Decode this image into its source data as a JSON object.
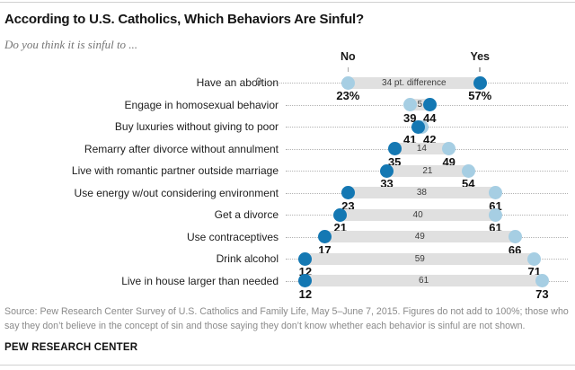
{
  "header": {
    "title": "According to U.S. Catholics, Which Behaviors Are Sinful?",
    "subtitle": "Do you think it is sinful to ..."
  },
  "chart_data": {
    "type": "dumbbell",
    "x_range_shown": [
      0,
      80
    ],
    "zero_label": "0",
    "legend": {
      "no_label": "No",
      "yes_label": "Yes"
    },
    "colors": {
      "no_dot": "#a6cee3",
      "yes_dot": "#1478b3",
      "bar": "#e0e0e0"
    },
    "value_suffix_first_row": "%",
    "rows": [
      {
        "label": "Have an abortion",
        "no": 23,
        "yes": 57,
        "diff_label": "34 pt. difference"
      },
      {
        "label": "Engage in homosexual behavior",
        "no": 39,
        "yes": 44,
        "diff_label": "5"
      },
      {
        "label": "Buy luxuries without giving to poor",
        "no": 42,
        "yes": 41,
        "diff_label": ""
      },
      {
        "label": "Remarry after divorce without annulment",
        "no": 49,
        "yes": 35,
        "diff_label": "14"
      },
      {
        "label": "Live with romantic partner outside marriage",
        "no": 54,
        "yes": 33,
        "diff_label": "21"
      },
      {
        "label": "Use energy w/out considering environment",
        "no": 61,
        "yes": 23,
        "diff_label": "38"
      },
      {
        "label": "Get a divorce",
        "no": 61,
        "yes": 21,
        "diff_label": "40"
      },
      {
        "label": "Use contraceptives",
        "no": 66,
        "yes": 17,
        "diff_label": "49"
      },
      {
        "label": "Drink alcohol",
        "no": 71,
        "yes": 12,
        "diff_label": "59"
      },
      {
        "label": "Live in house larger than needed",
        "no": 73,
        "yes": 12,
        "diff_label": "61"
      }
    ]
  },
  "footer": {
    "source": "Source: Pew Research Center Survey of U.S. Catholics and Family Life, May 5–June 7, 2015. Figures do not add to 100%; those who say they don’t believe in the concept of sin and those saying they don’t know whether each behavior is sinful are not shown.",
    "brand": "PEW RESEARCH CENTER"
  }
}
